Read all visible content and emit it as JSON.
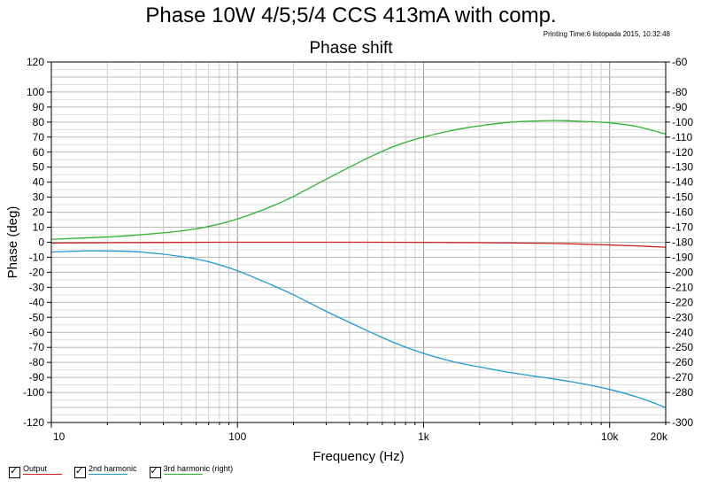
{
  "header": {
    "title": "Phase 10W 4/5;5/4 CCS 413mA with comp.",
    "printing_time": "Printing Time:6 listopada 2015, 10:32:48"
  },
  "chart_data": {
    "type": "line",
    "title": "Phase shift",
    "xlabel": "Frequency (Hz)",
    "ylabel": "Phase (deg)",
    "x_scale": "log",
    "xlim": [
      10,
      20000
    ],
    "ylim": [
      -120,
      120
    ],
    "y2lim": [
      -300,
      -60
    ],
    "x_ticks": [
      {
        "v": 10,
        "label": "10"
      },
      {
        "v": 100,
        "label": "100"
      },
      {
        "v": 1000,
        "label": "1k"
      },
      {
        "v": 10000,
        "label": "10k"
      },
      {
        "v": 20000,
        "label": "20k"
      }
    ],
    "y_ticks": [
      -120,
      -100,
      -90,
      -80,
      -70,
      -60,
      -50,
      -40,
      -30,
      -20,
      -10,
      0,
      10,
      20,
      30,
      40,
      50,
      60,
      70,
      80,
      90,
      100,
      120
    ],
    "y2_ticks": [
      -300,
      -280,
      -270,
      -260,
      -250,
      -240,
      -230,
      -220,
      -210,
      -200,
      -190,
      -180,
      -170,
      -160,
      -150,
      -140,
      -130,
      -120,
      -110,
      -100,
      -90,
      -80,
      -60
    ],
    "grid": true,
    "legend_position": "bottom-left",
    "series": [
      {
        "name": "Output",
        "color": "#cc2222",
        "axis": "left",
        "x": [
          10,
          20,
          50,
          100,
          200,
          500,
          1000,
          2000,
          5000,
          10000,
          15000,
          20000
        ],
        "y": [
          -0.5,
          -0.3,
          -0.1,
          0,
          0,
          0,
          -0.1,
          -0.3,
          -0.8,
          -1.8,
          -2.6,
          -3.3
        ]
      },
      {
        "name": "2nd harmonic",
        "color": "#1e9ad6",
        "axis": "left",
        "x": [
          10,
          15,
          20,
          30,
          50,
          70,
          100,
          150,
          200,
          300,
          500,
          700,
          1000,
          1500,
          2000,
          3000,
          5000,
          7000,
          10000,
          14000,
          20000
        ],
        "y": [
          -6.5,
          -5.8,
          -5.8,
          -6.5,
          -9.5,
          -13,
          -19,
          -28,
          -35,
          -46,
          -59,
          -67,
          -74,
          -80,
          -83,
          -87,
          -91,
          -94,
          -98,
          -103,
          -110
        ]
      },
      {
        "name": "3rd harmonic (right)",
        "color": "#2db52d",
        "axis": "right",
        "x": [
          10,
          20,
          30,
          50,
          70,
          100,
          150,
          200,
          300,
          500,
          700,
          1000,
          1500,
          2000,
          3000,
          5000,
          7000,
          10000,
          14000,
          20000
        ],
        "y": [
          -178,
          -176.5,
          -175,
          -172.5,
          -169.5,
          -164.5,
          -156.5,
          -149.5,
          -138,
          -124,
          -116,
          -110,
          -105,
          -102.5,
          -100,
          -99,
          -99.5,
          -100.5,
          -103,
          -108
        ]
      }
    ]
  }
}
